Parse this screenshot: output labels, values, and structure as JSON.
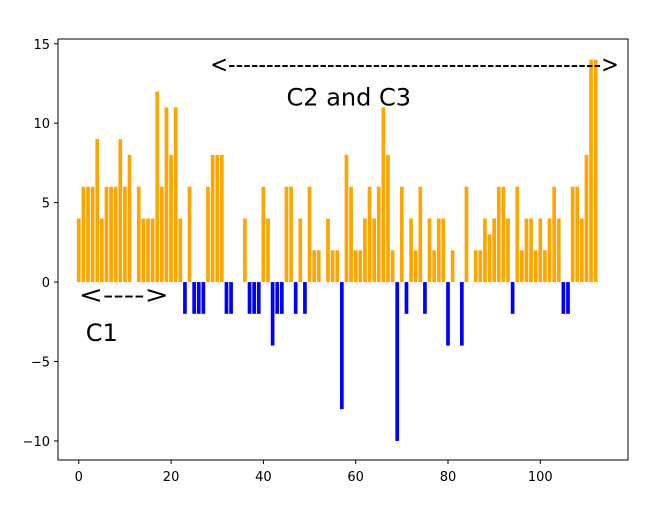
{
  "chart_data": {
    "type": "bar",
    "title": "",
    "xlabel": "",
    "ylabel": "",
    "xlim": [
      -4.5,
      119
    ],
    "ylim": [
      -11.2,
      15.3
    ],
    "xticks": [
      0,
      20,
      40,
      60,
      80,
      100
    ],
    "yticks": [
      -10,
      -5,
      0,
      5,
      10,
      15
    ],
    "xtick_labels": [
      "0",
      "20",
      "40",
      "60",
      "80",
      "100"
    ],
    "ytick_labels": [
      "−10",
      "−5",
      "0",
      "5",
      "10",
      "15"
    ],
    "grid": false,
    "legend": "none",
    "colors": {
      "positive": "#ffa500",
      "negative": "#0000ff"
    },
    "x": [
      0,
      1,
      2,
      3,
      4,
      5,
      6,
      7,
      8,
      9,
      10,
      11,
      12,
      13,
      14,
      15,
      16,
      17,
      18,
      19,
      20,
      21,
      22,
      23,
      24,
      25,
      26,
      27,
      28,
      29,
      30,
      31,
      32,
      33,
      34,
      35,
      36,
      37,
      38,
      39,
      40,
      41,
      42,
      43,
      44,
      45,
      46,
      47,
      48,
      49,
      50,
      51,
      52,
      53,
      54,
      55,
      56,
      57,
      58,
      59,
      60,
      61,
      62,
      63,
      64,
      65,
      66,
      67,
      68,
      69,
      70,
      71,
      72,
      73,
      74,
      75,
      76,
      77,
      78,
      79,
      80,
      81,
      82,
      83,
      84,
      85,
      86,
      87,
      88,
      89,
      90,
      91,
      92,
      93,
      94,
      95,
      96,
      97,
      98,
      99,
      100,
      101,
      102,
      103,
      104,
      105,
      106,
      107,
      108,
      109,
      110,
      111,
      112,
      113
    ],
    "values": [
      4,
      6,
      6,
      6,
      9,
      4,
      6,
      6,
      6,
      9,
      6,
      8,
      0,
      6,
      4,
      4,
      4,
      12,
      6,
      11,
      8,
      11,
      4,
      -2,
      6,
      -2,
      -2,
      -2,
      6,
      8,
      8,
      8,
      -2,
      -2,
      0,
      0,
      4,
      -2,
      -2,
      -2,
      6,
      4,
      -4,
      -2,
      -2,
      6,
      6,
      -2,
      4,
      -2,
      6,
      2,
      2,
      0,
      4,
      2,
      2,
      -8,
      8,
      6,
      2,
      2,
      4,
      6,
      4,
      6,
      11,
      8,
      2,
      -10,
      6,
      -2,
      4,
      2,
      6,
      -2,
      4,
      2,
      4,
      4,
      -4,
      2,
      0,
      -4,
      6,
      0,
      2,
      2,
      4,
      3,
      4,
      6,
      6,
      4,
      -2,
      6,
      2,
      4,
      4,
      2,
      4,
      2,
      4,
      6,
      4,
      -2,
      -2,
      6,
      6,
      4,
      8,
      14,
      14,
      0
    ]
  },
  "annotations": {
    "c1": {
      "label": "C1",
      "arrow": "<---->",
      "x_start": 0,
      "x_end": 19.5,
      "y": -1
    },
    "c2c3": {
      "label": "C2 and C3",
      "arrow": "<------------------------------------------------->",
      "x_start": 28.5,
      "x_end": 117,
      "y": 13.5
    }
  }
}
